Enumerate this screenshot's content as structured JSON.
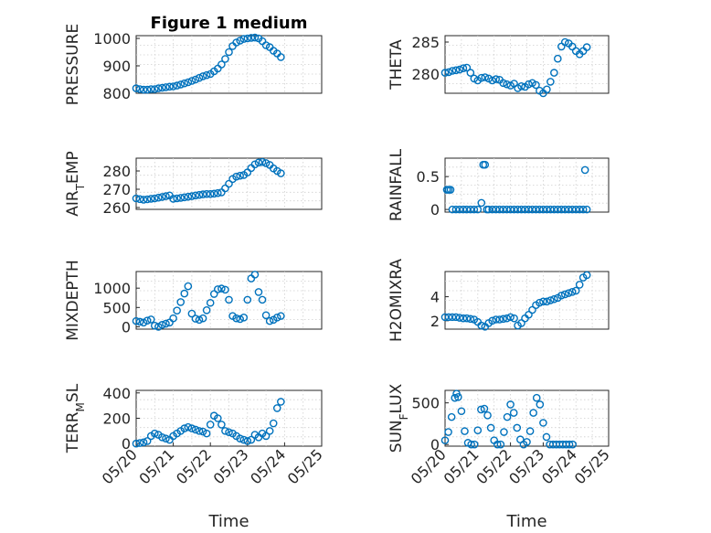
{
  "chart_data": [
    {
      "id": "pressure",
      "type": "scatter",
      "title": "Figure 1 medium",
      "ylabel": "PRESSURE",
      "xlabel": "",
      "xlim": [
        0,
        5
      ],
      "ylim": [
        800,
        1010
      ],
      "yticks": [
        800,
        900,
        1000
      ],
      "xticks": [],
      "x": [
        0,
        0.1,
        0.2,
        0.3,
        0.4,
        0.5,
        0.6,
        0.7,
        0.8,
        0.9,
        1.0,
        1.1,
        1.2,
        1.3,
        1.4,
        1.5,
        1.6,
        1.7,
        1.8,
        1.9,
        2.0,
        2.1,
        2.2,
        2.3,
        2.4,
        2.5,
        2.6,
        2.7,
        2.8,
        2.9,
        3.0,
        3.1,
        3.2,
        3.3,
        3.4,
        3.5,
        3.6,
        3.7,
        3.8,
        3.9
      ],
      "y": [
        818,
        815,
        813,
        813,
        815,
        815,
        818,
        820,
        822,
        824,
        825,
        828,
        832,
        836,
        840,
        845,
        850,
        856,
        862,
        866,
        870,
        880,
        890,
        905,
        925,
        950,
        972,
        985,
        992,
        998,
        1000,
        1002,
        1003,
        1000,
        990,
        975,
        968,
        955,
        945,
        932
      ]
    },
    {
      "id": "theta",
      "type": "scatter",
      "title": "",
      "ylabel": "THETA",
      "xlabel": "",
      "xlim": [
        0,
        4.5
      ],
      "ylim": [
        277,
        286
      ],
      "yticks": [
        280,
        285
      ],
      "xticks": [],
      "x": [
        0,
        0.1,
        0.2,
        0.3,
        0.4,
        0.5,
        0.6,
        0.7,
        0.8,
        0.9,
        1.0,
        1.1,
        1.2,
        1.3,
        1.4,
        1.5,
        1.6,
        1.7,
        1.8,
        1.9,
        2.0,
        2.1,
        2.2,
        2.3,
        2.4,
        2.5,
        2.6,
        2.7,
        2.8,
        2.9,
        3.0,
        3.1,
        3.2,
        3.3,
        3.4,
        3.5,
        3.6,
        3.7,
        3.8,
        3.9
      ],
      "y": [
        280.2,
        280.3,
        280.5,
        280.6,
        280.7,
        280.9,
        281.0,
        280.2,
        279.3,
        279.0,
        279.4,
        279.5,
        279.3,
        279.0,
        279.2,
        279.1,
        278.6,
        278.4,
        278.2,
        278.5,
        277.8,
        278.1,
        278.0,
        278.4,
        278.6,
        278.3,
        277.4,
        277.0,
        277.6,
        278.8,
        280.2,
        282.4,
        284.3,
        285.0,
        284.8,
        284.3,
        283.6,
        283.1,
        283.6,
        284.2
      ]
    },
    {
      "id": "air_temp",
      "type": "scatter",
      "title": "",
      "ylabel": "AIR_TEMP",
      "xlabel": "",
      "xlim": [
        0,
        5
      ],
      "ylim": [
        259,
        287
      ],
      "yticks": [
        260,
        270,
        280
      ],
      "xticks": [],
      "x": [
        0,
        0.1,
        0.2,
        0.3,
        0.4,
        0.5,
        0.6,
        0.7,
        0.8,
        0.9,
        1.0,
        1.1,
        1.2,
        1.3,
        1.4,
        1.5,
        1.6,
        1.7,
        1.8,
        1.9,
        2.0,
        2.1,
        2.2,
        2.3,
        2.4,
        2.5,
        2.6,
        2.7,
        2.8,
        2.9,
        3.0,
        3.1,
        3.2,
        3.3,
        3.4,
        3.5,
        3.6,
        3.7,
        3.8,
        3.9
      ],
      "y": [
        265,
        264.6,
        264.3,
        264.5,
        264.8,
        265.0,
        265.4,
        265.8,
        266.2,
        266.6,
        264.8,
        265.0,
        265.3,
        265.6,
        265.9,
        266.2,
        266.6,
        266.9,
        267.2,
        267.4,
        267.4,
        267.6,
        267.9,
        268.3,
        270.5,
        273.0,
        275.6,
        276.9,
        277.4,
        277.8,
        279.2,
        281.6,
        283.6,
        284.6,
        284.9,
        284.3,
        283.3,
        281.4,
        280.0,
        278.7
      ]
    },
    {
      "id": "rainfall",
      "type": "scatter",
      "title": "",
      "ylabel": "RAINFALL",
      "xlabel": "",
      "xlim": [
        0,
        4.5
      ],
      "ylim": [
        -0.04,
        0.78
      ],
      "yticks": [
        0,
        0.5
      ],
      "xticks": [],
      "x": [
        0.05,
        0.1,
        0.15,
        0.2,
        0.3,
        0.4,
        0.5,
        0.6,
        0.7,
        0.8,
        0.9,
        1.0,
        1.05,
        1.1,
        1.15,
        1.2,
        1.3,
        1.4,
        1.5,
        1.6,
        1.7,
        1.8,
        1.9,
        2.0,
        2.1,
        2.2,
        2.3,
        2.4,
        2.5,
        2.6,
        2.7,
        2.8,
        2.9,
        3.0,
        3.1,
        3.2,
        3.3,
        3.4,
        3.5,
        3.6,
        3.7,
        3.8,
        3.85,
        3.9
      ],
      "y": [
        0.3,
        0.3,
        0.3,
        0,
        0,
        0,
        0,
        0,
        0,
        0,
        0,
        0.1,
        0.68,
        0.68,
        0,
        0,
        0,
        0,
        0,
        0,
        0,
        0,
        0,
        0,
        0,
        0,
        0,
        0,
        0,
        0,
        0,
        0,
        0,
        0,
        0,
        0,
        0,
        0,
        0,
        0,
        0,
        0,
        0.6,
        0
      ]
    },
    {
      "id": "mixdepth",
      "type": "scatter",
      "title": "",
      "ylabel": "MIXDEPTH",
      "xlabel": "",
      "xlim": [
        0,
        5
      ],
      "ylim": [
        -60,
        1430
      ],
      "yticks": [
        0,
        500,
        1000
      ],
      "xticks": [],
      "x": [
        0,
        0.1,
        0.2,
        0.3,
        0.4,
        0.5,
        0.6,
        0.7,
        0.8,
        0.9,
        1.0,
        1.1,
        1.2,
        1.3,
        1.4,
        1.5,
        1.6,
        1.7,
        1.8,
        1.9,
        2.0,
        2.1,
        2.2,
        2.3,
        2.4,
        2.5,
        2.6,
        2.7,
        2.8,
        2.9,
        3.0,
        3.1,
        3.2,
        3.3,
        3.4,
        3.5,
        3.6,
        3.7,
        3.8,
        3.9
      ],
      "y": [
        150,
        130,
        110,
        160,
        190,
        30,
        0,
        50,
        80,
        110,
        220,
        420,
        640,
        860,
        1050,
        340,
        210,
        180,
        220,
        430,
        620,
        850,
        970,
        990,
        960,
        700,
        280,
        220,
        200,
        240,
        700,
        1250,
        1350,
        900,
        700,
        300,
        150,
        180,
        240,
        280
      ]
    },
    {
      "id": "h2omixra",
      "type": "scatter",
      "title": "",
      "ylabel": "H2OMIXRA",
      "xlabel": "",
      "xlim": [
        0,
        4.5
      ],
      "ylim": [
        1.3,
        6.1
      ],
      "yticks": [
        2,
        4
      ],
      "xticks": [],
      "x": [
        0,
        0.1,
        0.2,
        0.3,
        0.4,
        0.5,
        0.6,
        0.7,
        0.8,
        0.9,
        1.0,
        1.1,
        1.2,
        1.3,
        1.4,
        1.5,
        1.6,
        1.7,
        1.8,
        1.9,
        2.0,
        2.1,
        2.2,
        2.3,
        2.4,
        2.5,
        2.6,
        2.7,
        2.8,
        2.9,
        3.0,
        3.1,
        3.2,
        3.3,
        3.4,
        3.5,
        3.6,
        3.7,
        3.8,
        3.9
      ],
      "y": [
        2.3,
        2.3,
        2.3,
        2.3,
        2.25,
        2.2,
        2.2,
        2.15,
        2.1,
        1.9,
        1.6,
        1.5,
        1.8,
        2.0,
        2.1,
        2.1,
        2.15,
        2.2,
        2.3,
        2.2,
        1.6,
        1.8,
        2.2,
        2.5,
        2.9,
        3.3,
        3.5,
        3.6,
        3.6,
        3.7,
        3.8,
        3.9,
        4.1,
        4.2,
        4.3,
        4.4,
        4.5,
        5.0,
        5.6,
        5.8
      ]
    },
    {
      "id": "terr_msl",
      "type": "scatter",
      "title": "",
      "ylabel": "TERR_MSL",
      "xlabel": "Time",
      "xlim": [
        0,
        5
      ],
      "ylim": [
        -20,
        420
      ],
      "yticks": [
        0,
        200,
        400
      ],
      "xticks": [
        0,
        1,
        2,
        3,
        4,
        5
      ],
      "xticklabels": [
        "05/20",
        "05/21",
        "05/22",
        "05/23",
        "05/24",
        "05/25"
      ],
      "x": [
        0,
        0.1,
        0.2,
        0.3,
        0.4,
        0.5,
        0.6,
        0.7,
        0.8,
        0.9,
        1.0,
        1.1,
        1.2,
        1.3,
        1.4,
        1.5,
        1.6,
        1.7,
        1.8,
        1.9,
        2.0,
        2.1,
        2.2,
        2.3,
        2.4,
        2.5,
        2.6,
        2.7,
        2.8,
        2.9,
        3.0,
        3.1,
        3.2,
        3.3,
        3.4,
        3.5,
        3.6,
        3.7,
        3.8,
        3.9
      ],
      "y": [
        0,
        5,
        10,
        20,
        60,
        80,
        70,
        50,
        40,
        30,
        60,
        80,
        100,
        120,
        130,
        120,
        110,
        100,
        95,
        80,
        150,
        220,
        200,
        150,
        100,
        90,
        80,
        60,
        40,
        30,
        20,
        30,
        70,
        50,
        80,
        60,
        100,
        160,
        280,
        330
      ]
    },
    {
      "id": "sun_flux",
      "type": "scatter",
      "title": "",
      "ylabel": "SUN_FLUX",
      "xlabel": "Time",
      "xlim": [
        0,
        5
      ],
      "ylim": [
        -20,
        650
      ],
      "yticks": [
        0,
        500
      ],
      "xticks": [
        0,
        1,
        2,
        3,
        4,
        5
      ],
      "xticklabels": [
        "05/20",
        "05/21",
        "05/22",
        "05/23",
        "05/24",
        "05/25"
      ],
      "x": [
        0,
        0.1,
        0.2,
        0.3,
        0.35,
        0.4,
        0.5,
        0.6,
        0.7,
        0.8,
        0.9,
        1.0,
        1.1,
        1.2,
        1.3,
        1.4,
        1.5,
        1.6,
        1.7,
        1.8,
        1.9,
        2.0,
        2.1,
        2.2,
        2.3,
        2.4,
        2.5,
        2.6,
        2.7,
        2.8,
        2.9,
        3.0,
        3.1,
        3.2,
        3.3,
        3.4,
        3.5,
        3.6,
        3.7,
        3.8,
        3.9
      ],
      "y": [
        50,
        150,
        330,
        560,
        610,
        570,
        400,
        160,
        20,
        0,
        0,
        170,
        420,
        430,
        350,
        200,
        50,
        0,
        0,
        150,
        330,
        480,
        380,
        200,
        60,
        0,
        30,
        160,
        380,
        560,
        480,
        260,
        90,
        0,
        0,
        0,
        0,
        0,
        0,
        0,
        0
      ]
    }
  ]
}
